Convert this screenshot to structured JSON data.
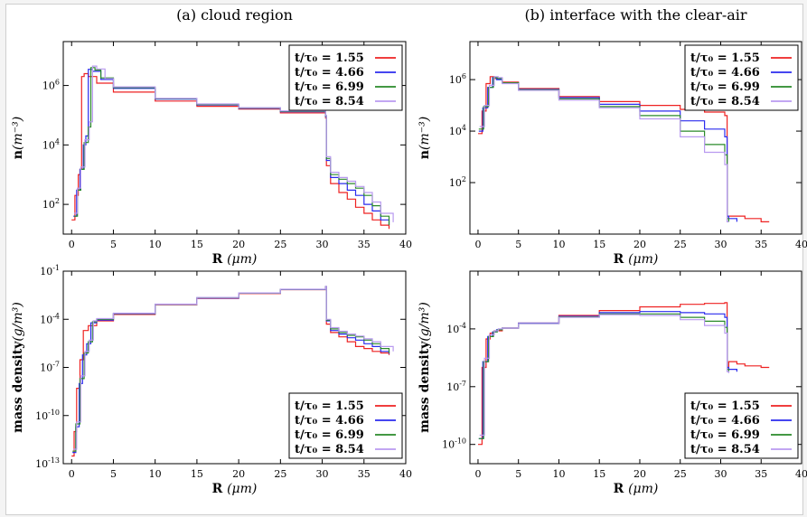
{
  "colors": {
    "red": "#ee2222",
    "blue": "#2b2bee",
    "green": "#2a8a2a",
    "violet": "#b99af0"
  },
  "chart_data": [
    {
      "type": "line",
      "title": "(a) cloud region",
      "xlabel": "R (μm)",
      "ylabel": "n(m⁻³)",
      "xlim": [
        -1,
        40
      ],
      "ylim": [
        10,
        30000000
      ],
      "log_y": true,
      "x_ticks": [
        "0",
        "5",
        "10",
        "15",
        "20",
        "25",
        "30",
        "35",
        "40"
      ],
      "y_ticks": [
        {
          "v": 100,
          "label": "10²"
        },
        {
          "v": 10000,
          "label": "10⁴"
        },
        {
          "v": 1000000,
          "label": "10⁶"
        }
      ],
      "legend_position": "top-right",
      "series": [
        {
          "name": "t/τ₀ = 1.55",
          "color": "red",
          "x": [
            0,
            0.4,
            0.8,
            1.0,
            1.2,
            1.5,
            2.0,
            3.0,
            5.0,
            10,
            15,
            20,
            25,
            30.4,
            30.5,
            31,
            32,
            33,
            34,
            35,
            36,
            37,
            38
          ],
          "y": [
            30,
            200,
            1000,
            1500,
            2000000,
            2500000,
            2000000,
            1200000,
            600000,
            300000,
            200000,
            160000,
            120000,
            80000,
            2000,
            500,
            250,
            150,
            80,
            50,
            30,
            20,
            15
          ]
        },
        {
          "name": "t/τ₀ = 4.66",
          "color": "blue",
          "x": [
            0.2,
            0.6,
            1.0,
            1.4,
            1.7,
            2.0,
            2.5,
            3.5,
            5.0,
            10,
            15,
            20,
            25,
            30.4,
            30.5,
            31,
            32,
            33,
            34,
            35,
            36,
            37,
            38
          ],
          "y": [
            40,
            300,
            1500,
            10000,
            20000,
            3500000,
            3000000,
            1600000,
            800000,
            350000,
            220000,
            170000,
            130000,
            90000,
            3000,
            800,
            500,
            300,
            200,
            100,
            60,
            30,
            20
          ]
        },
        {
          "name": "t/τ₀ = 6.99",
          "color": "green",
          "x": [
            0.3,
            0.7,
            1.1,
            1.5,
            2.0,
            2.3,
            2.8,
            3.5,
            5.0,
            10,
            15,
            20,
            25,
            30.4,
            30.5,
            31,
            32,
            33,
            34,
            35,
            36,
            37,
            38
          ],
          "y": [
            40,
            300,
            1500,
            12000,
            40000,
            4000000,
            3300000,
            1800000,
            850000,
            360000,
            230000,
            175000,
            135000,
            95000,
            3500,
            1000,
            700,
            500,
            350,
            200,
            90,
            40,
            20
          ]
        },
        {
          "name": "t/τ₀ = 8.54",
          "color": "violet",
          "x": [
            0.3,
            0.7,
            1.1,
            1.6,
            2.1,
            2.5,
            3.0,
            4.0,
            5.0,
            10,
            15,
            20,
            25,
            30.4,
            30.5,
            31,
            32,
            33,
            34,
            35,
            36,
            37,
            38.5
          ],
          "y": [
            50,
            350,
            1800,
            15000,
            60000,
            4500000,
            3600000,
            1700000,
            900000,
            370000,
            240000,
            180000,
            140000,
            100000,
            4000,
            1200,
            800,
            600,
            400,
            250,
            120,
            50,
            25
          ]
        }
      ]
    },
    {
      "type": "line",
      "title": "(b) interface with the clear-air",
      "xlabel": "R (μm)",
      "ylabel": "n(m⁻³)",
      "xlim": [
        -1,
        40
      ],
      "ylim": [
        1,
        30000000
      ],
      "log_y": true,
      "x_ticks": [
        "0",
        "5",
        "10",
        "15",
        "20",
        "25",
        "30",
        "35",
        "40"
      ],
      "y_ticks": [
        {
          "v": 100,
          "label": "10²"
        },
        {
          "v": 10000,
          "label": "10⁴"
        },
        {
          "v": 1000000,
          "label": "10⁶"
        }
      ],
      "legend_position": "top-right",
      "series": [
        {
          "name": "t/τ₀ = 1.55",
          "color": "red",
          "x": [
            0,
            0.5,
            1.0,
            1.5,
            2.0,
            3.0,
            5.0,
            10,
            15,
            20,
            25,
            28,
            30.5,
            30.8,
            31,
            32,
            33,
            34,
            35,
            36
          ],
          "y": [
            8000,
            60000,
            700000,
            1300000,
            1100000,
            800000,
            450000,
            220000,
            140000,
            100000,
            70000,
            55000,
            40000,
            5,
            5,
            5,
            4,
            4,
            3,
            3
          ]
        },
        {
          "name": "t/τ₀ = 4.66",
          "color": "blue",
          "x": [
            0.1,
            0.6,
            1.2,
            1.8,
            2.3,
            3.0,
            5.0,
            10,
            15,
            20,
            25,
            28,
            30.5,
            30.8,
            31,
            32
          ],
          "y": [
            10000,
            80000,
            500000,
            1200000,
            1000000,
            750000,
            420000,
            200000,
            110000,
            60000,
            25000,
            12000,
            6000,
            5,
            4,
            3
          ]
        },
        {
          "name": "t/τ₀ = 6.99",
          "color": "green",
          "x": [
            0.1,
            0.7,
            1.3,
            1.9,
            2.4,
            3.0,
            5.0,
            10,
            15,
            20,
            25,
            28,
            30.5,
            30.8,
            31
          ],
          "y": [
            12000,
            90000,
            500000,
            1200000,
            1100000,
            750000,
            400000,
            180000,
            90000,
            40000,
            10000,
            3000,
            1200,
            4,
            3
          ]
        },
        {
          "name": "t/τ₀ = 8.54",
          "color": "violet",
          "x": [
            0.2,
            0.8,
            1.4,
            2.0,
            2.5,
            3.0,
            5.0,
            10,
            15,
            20,
            25,
            28,
            30.5,
            30.8,
            31
          ],
          "y": [
            15000,
            100000,
            600000,
            1300000,
            1200000,
            700000,
            380000,
            160000,
            80000,
            30000,
            6000,
            1500,
            500,
            3,
            3
          ]
        }
      ]
    },
    {
      "type": "line",
      "title": "",
      "xlabel": "R (μm)",
      "ylabel": "mass density(g/m³)",
      "xlim": [
        -1,
        40
      ],
      "ylim": [
        1e-13,
        0.1
      ],
      "log_y": true,
      "x_ticks": [
        "0",
        "5",
        "10",
        "15",
        "20",
        "25",
        "30",
        "35",
        "40"
      ],
      "y_ticks": [
        {
          "v": 1e-13,
          "label": "10⁻¹³"
        },
        {
          "v": 1e-10,
          "label": "10⁻¹⁰"
        },
        {
          "v": 1e-07,
          "label": "10⁻⁷"
        },
        {
          "v": 0.0001,
          "label": "10⁻⁴"
        },
        {
          "v": 0.1,
          "label": "10⁻¹"
        }
      ],
      "legend_position": "bottom-right",
      "series": [
        {
          "name": "t/τ₀ = 1.55",
          "color": "red",
          "x": [
            0,
            0.3,
            0.6,
            1.0,
            1.4,
            2.0,
            3.0,
            5.0,
            10,
            15,
            20,
            25,
            30.4,
            30.5,
            31,
            32,
            33,
            34,
            35,
            36,
            37,
            38
          ],
          "y": [
            3e-13,
            1e-11,
            5e-09,
            3e-07,
            2e-05,
            4e-05,
            8e-05,
            0.0002,
            0.0008,
            0.002,
            0.004,
            0.007,
            0.01,
            5e-05,
            1.5e-05,
            8e-06,
            4e-06,
            2e-06,
            1.5e-06,
            1e-06,
            8e-07,
            6e-07
          ]
        },
        {
          "name": "t/τ₀ = 4.66",
          "color": "blue",
          "x": [
            0.1,
            0.5,
            0.9,
            1.3,
            1.8,
            2.3,
            3.0,
            5.0,
            10,
            15,
            20,
            25,
            30.4,
            30.5,
            31,
            32,
            33,
            34,
            35,
            36,
            37,
            38
          ],
          "y": [
            5e-13,
            2e-11,
            1e-08,
            6e-07,
            3e-06,
            6e-05,
            9e-05,
            0.00022,
            0.00085,
            0.0021,
            0.0042,
            0.0072,
            0.0105,
            8e-05,
            2e-05,
            1.2e-05,
            7e-06,
            5e-06,
            3e-06,
            2e-06,
            1e-06,
            7e-07
          ]
        },
        {
          "name": "t/τ₀ = 6.99",
          "color": "green",
          "x": [
            0.1,
            0.5,
            1.0,
            1.5,
            2.0,
            2.5,
            3.0,
            5.0,
            10,
            15,
            20,
            25,
            30.4,
            30.5,
            31,
            32,
            33,
            34,
            35,
            36,
            37,
            38
          ],
          "y": [
            6e-13,
            3e-11,
            2e-08,
            8e-07,
            4e-06,
            7e-05,
            0.0001,
            0.00023,
            0.00087,
            0.0022,
            0.0043,
            0.0074,
            0.011,
            9e-05,
            2.5e-05,
            1.5e-05,
            1e-05,
            8e-06,
            5e-06,
            3e-06,
            1.5e-06,
            8e-07
          ]
        },
        {
          "name": "t/τ₀ = 8.54",
          "color": "violet",
          "x": [
            0.2,
            0.6,
            1.1,
            1.6,
            2.1,
            2.6,
            3.0,
            5.0,
            10,
            15,
            20,
            25,
            30.4,
            30.5,
            31,
            32,
            33,
            34,
            35,
            36,
            37,
            38.5
          ],
          "y": [
            8e-13,
            4e-11,
            3e-08,
            1e-06,
            5e-06,
            8e-05,
            0.00011,
            0.00024,
            0.00088,
            0.0023,
            0.0044,
            0.0075,
            0.0115,
            0.0001,
            3e-05,
            1.8e-05,
            1.2e-05,
            9e-06,
            6e-06,
            4e-06,
            2e-06,
            1e-06
          ]
        }
      ]
    },
    {
      "type": "line",
      "title": "",
      "xlabel": "R (μm)",
      "ylabel": "mass density(g/m³)",
      "xlim": [
        -1,
        40
      ],
      "ylim": [
        1e-11,
        0.1
      ],
      "log_y": true,
      "x_ticks": [
        "0",
        "5",
        "10",
        "15",
        "20",
        "25",
        "30",
        "35",
        "40"
      ],
      "y_ticks": [
        {
          "v": 1e-10,
          "label": "10⁻¹⁰"
        },
        {
          "v": 1e-07,
          "label": "10⁻⁷"
        },
        {
          "v": 0.0001,
          "label": "10⁻⁴"
        }
      ],
      "legend_position": "bottom-right",
      "series": [
        {
          "name": "t/τ₀ = 1.55",
          "color": "red",
          "x": [
            0,
            0.5,
            1.0,
            1.5,
            2.0,
            3.0,
            5.0,
            10,
            15,
            20,
            25,
            28,
            30.5,
            30.8,
            31,
            32,
            33,
            34,
            35,
            36
          ],
          "y": [
            1e-10,
            1e-06,
            3e-05,
            6e-05,
            8e-05,
            0.00011,
            0.0002,
            0.0005,
            0.0009,
            0.0014,
            0.0019,
            0.0021,
            0.0023,
            1e-06,
            2e-06,
            1.5e-06,
            1.2e-06,
            1.2e-06,
            1e-06,
            1e-06
          ]
        },
        {
          "name": "t/τ₀ = 4.66",
          "color": "blue",
          "x": [
            0.1,
            0.6,
            1.2,
            1.8,
            2.3,
            3.0,
            5.0,
            10,
            15,
            20,
            25,
            28,
            30.5,
            30.8,
            31,
            32
          ],
          "y": [
            2e-10,
            2e-06,
            4e-05,
            7e-05,
            9e-05,
            0.00011,
            0.0002,
            0.00045,
            0.0007,
            0.0008,
            0.0007,
            0.0006,
            0.0004,
            1e-06,
            8e-07,
            6e-07
          ]
        },
        {
          "name": "t/τ₀ = 6.99",
          "color": "green",
          "x": [
            0.1,
            0.7,
            1.3,
            1.9,
            2.4,
            3.0,
            5.0,
            10,
            15,
            20,
            25,
            28,
            30.5,
            30.8,
            31
          ],
          "y": [
            2e-10,
            2e-06,
            4e-05,
            7e-05,
            9e-05,
            0.00011,
            0.00019,
            0.00042,
            0.0006,
            0.0006,
            0.0004,
            0.00025,
            0.00012,
            8e-07,
            6e-07
          ]
        },
        {
          "name": "t/τ₀ = 8.54",
          "color": "violet",
          "x": [
            0.2,
            0.8,
            1.4,
            2.0,
            2.5,
            3.0,
            5.0,
            10,
            15,
            20,
            25,
            28,
            30.5,
            30.8,
            31
          ],
          "y": [
            3e-10,
            3e-06,
            5e-05,
            8e-05,
            0.0001,
            0.00011,
            0.00019,
            0.0004,
            0.00055,
            0.0005,
            0.0003,
            0.00015,
            6e-05,
            6e-07,
            5e-07
          ]
        }
      ]
    }
  ]
}
